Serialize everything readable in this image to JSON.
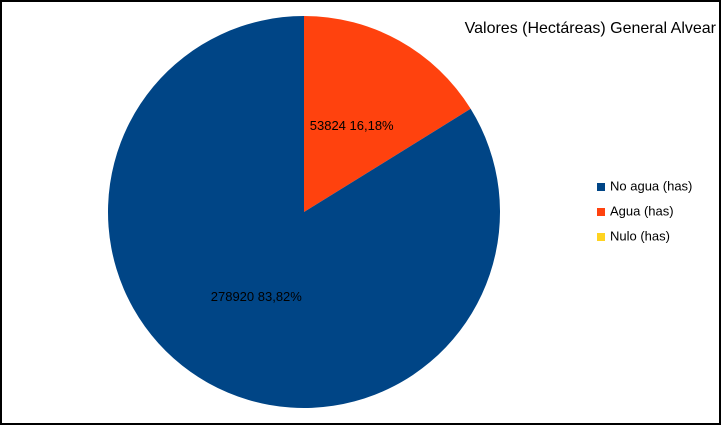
{
  "chart_data": {
    "type": "pie",
    "title": "Valores (Hectáreas) General Alvear",
    "categories": [
      "No agua (has)",
      "Agua (has)",
      "Nulo (has)"
    ],
    "values": [
      278920,
      53824,
      0
    ],
    "value_labels": [
      "278920 83,82%",
      "53824 16,18%",
      null
    ],
    "colors": [
      "#004586",
      "#ff420e",
      "#ffd320"
    ],
    "legend": "right"
  }
}
